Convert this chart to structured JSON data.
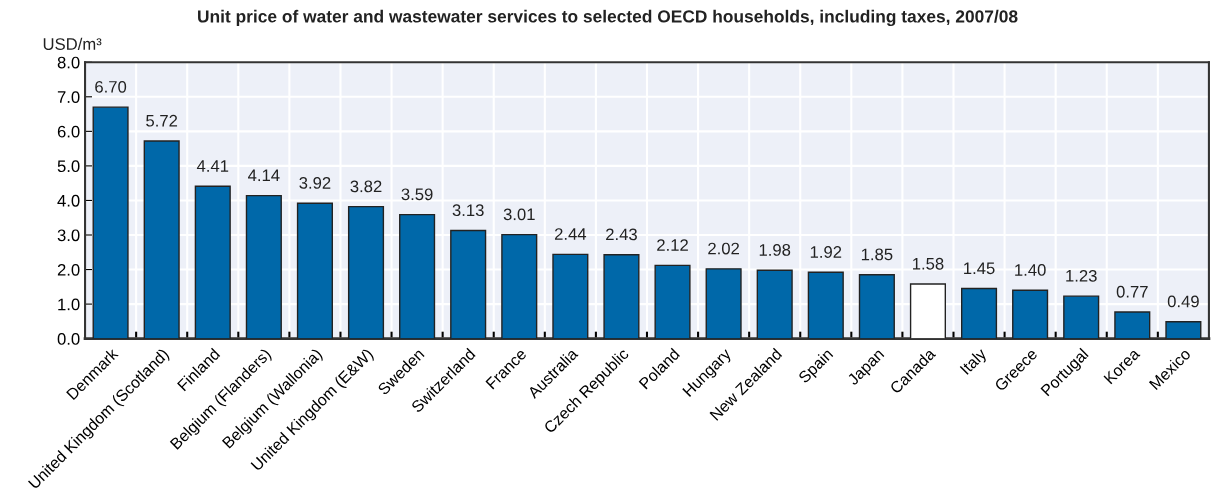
{
  "chart_data": {
    "type": "bar",
    "title": "Unit price of water and wastewater services to selected OECD households, including taxes, 2007/08",
    "ylabel": "USD/m³",
    "categories": [
      "Denmark",
      "United Kingdom (Scotland)",
      "Finland",
      "Belgium (Flanders)",
      "Belgium (Wallonia)",
      "United Kingdom (E&W)",
      "Sweden",
      "Switzerland",
      "France",
      "Australia",
      "Czech Republic",
      "Poland",
      "Hungary",
      "New Zealand",
      "Spain",
      "Japan",
      "Canada",
      "Italy",
      "Greece",
      "Portugal",
      "Korea",
      "Mexico"
    ],
    "values": [
      6.7,
      5.72,
      4.41,
      4.14,
      3.92,
      3.82,
      3.59,
      3.13,
      3.01,
      2.44,
      2.43,
      2.12,
      2.02,
      1.98,
      1.92,
      1.85,
      1.58,
      1.45,
      1.4,
      1.23,
      0.77,
      0.49
    ],
    "colors": [
      "#0068a9",
      "#0068a9",
      "#0068a9",
      "#0068a9",
      "#0068a9",
      "#0068a9",
      "#0068a9",
      "#0068a9",
      "#0068a9",
      "#0068a9",
      "#0068a9",
      "#0068a9",
      "#0068a9",
      "#0068a9",
      "#0068a9",
      "#0068a9",
      "#ffffff",
      "#0068a9",
      "#0068a9",
      "#0068a9",
      "#0068a9",
      "#0068a9"
    ],
    "value_labels": [
      "6.70",
      "5.72",
      "4.41",
      "4.14",
      "3.92",
      "3.82",
      "3.59",
      "3.13",
      "3.01",
      "2.44",
      "2.43",
      "2.12",
      "2.02",
      "1.98",
      "1.92",
      "1.85",
      "1.58",
      "1.45",
      "1.40",
      "1.23",
      "0.77",
      "0.49"
    ],
    "ylim": [
      0,
      8
    ],
    "yticks": [
      {
        "value": 0,
        "label": "0.0"
      },
      {
        "value": 1,
        "label": "1.0"
      },
      {
        "value": 2,
        "label": "2.0"
      },
      {
        "value": 3,
        "label": "3.0"
      },
      {
        "value": 4,
        "label": "4.0"
      },
      {
        "value": 5,
        "label": "5.0"
      },
      {
        "value": 6,
        "label": "6.0"
      },
      {
        "value": 7,
        "label": "7.0"
      },
      {
        "value": 8,
        "label": "8.0"
      }
    ],
    "grid": true
  }
}
